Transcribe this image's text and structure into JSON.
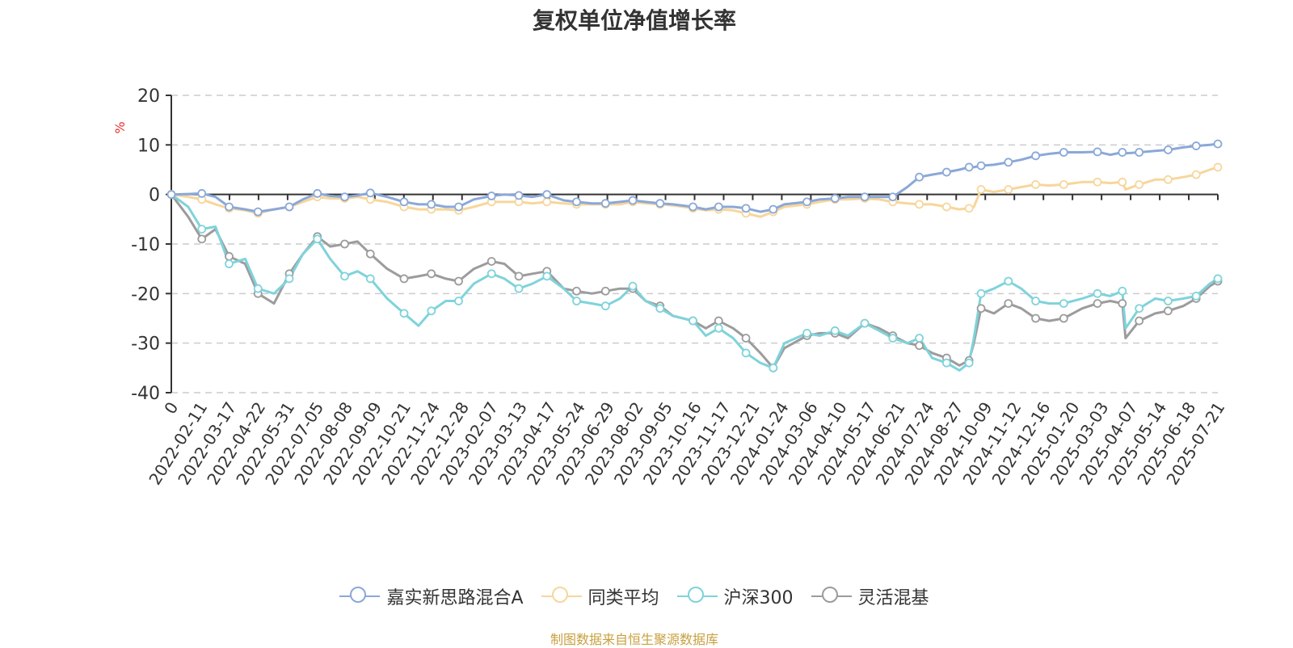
{
  "title": "复权单位净值增长率",
  "source_note": "制图数据来自恒生聚源数据库",
  "colors": {
    "jiashi": "#8aa8d8",
    "avg": "#f7d69b",
    "hs300": "#7fd3db",
    "lh": "#9c9c9c",
    "ylabel": "#e8302e",
    "source": "#c8a040",
    "axis": "#333333",
    "grid": "#cccccc"
  },
  "chart_data": {
    "type": "line",
    "title": "复权单位净值增长率",
    "ylabel": "%",
    "ylim": [
      -40,
      20
    ],
    "yticks": [
      20,
      10,
      0,
      -10,
      -20,
      -30,
      -40
    ],
    "grid": "horizontal dashed",
    "legend_position": "bottom-center",
    "x_ticks": [
      "0",
      "2022-02-11",
      "2022-03-17",
      "2022-04-22",
      "2022-05-31",
      "2022-07-05",
      "2022-08-08",
      "2022-09-09",
      "2022-10-21",
      "2022-11-24",
      "2022-12-28",
      "2023-02-07",
      "2023-03-13",
      "2023-04-17",
      "2023-05-24",
      "2023-06-29",
      "2023-08-02",
      "2023-09-05",
      "2023-10-16",
      "2023-11-17",
      "2023-12-21",
      "2024-01-24",
      "2024-03-06",
      "2024-04-10",
      "2024-05-17",
      "2024-06-21",
      "2024-07-24",
      "2024-08-27",
      "2024-10-09",
      "2024-11-12",
      "2024-12-16",
      "2025-01-20",
      "2025-03-03",
      "2025-04-07",
      "2025-05-14",
      "2025-06-18",
      "2025-07-21"
    ],
    "x": [
      "2022-01-04",
      "2022-01-25",
      "2022-02-11",
      "2022-02-28",
      "2022-03-17",
      "2022-04-06",
      "2022-04-22",
      "2022-05-12",
      "2022-05-31",
      "2022-06-17",
      "2022-07-05",
      "2022-07-21",
      "2022-08-08",
      "2022-08-24",
      "2022-09-09",
      "2022-09-30",
      "2022-10-21",
      "2022-11-08",
      "2022-11-24",
      "2022-12-12",
      "2022-12-28",
      "2023-01-16",
      "2023-02-07",
      "2023-02-23",
      "2023-03-13",
      "2023-03-30",
      "2023-04-17",
      "2023-05-08",
      "2023-05-24",
      "2023-06-12",
      "2023-06-29",
      "2023-07-17",
      "2023-08-02",
      "2023-08-18",
      "2023-09-05",
      "2023-09-21",
      "2023-10-16",
      "2023-11-01",
      "2023-11-17",
      "2023-12-05",
      "2023-12-21",
      "2024-01-08",
      "2024-01-24",
      "2024-02-07",
      "2024-03-06",
      "2024-03-22",
      "2024-04-10",
      "2024-04-26",
      "2024-05-17",
      "2024-06-04",
      "2024-06-21",
      "2024-07-09",
      "2024-07-24",
      "2024-08-09",
      "2024-08-27",
      "2024-09-12",
      "2024-09-24",
      "2024-09-30",
      "2024-10-09",
      "2024-10-25",
      "2024-11-12",
      "2024-11-28",
      "2024-12-16",
      "2025-01-02",
      "2025-01-20",
      "2025-02-12",
      "2025-03-03",
      "2025-03-19",
      "2025-04-03",
      "2025-04-07",
      "2025-04-24",
      "2025-05-14",
      "2025-05-30",
      "2025-06-18",
      "2025-07-04",
      "2025-07-21",
      "2025-07-31"
    ],
    "series": [
      {
        "name": "嘉实新思路混合A",
        "color_key": "jiashi",
        "values": [
          0,
          0.1,
          0.2,
          -0.5,
          -2.5,
          -3.0,
          -3.5,
          -3.0,
          -2.5,
          -1.0,
          0.2,
          -0.3,
          -0.5,
          -0.2,
          0.3,
          -0.5,
          -1.5,
          -2.0,
          -2.0,
          -2.5,
          -2.5,
          -1.0,
          -0.3,
          0.0,
          -0.2,
          -0.5,
          0.0,
          -1.2,
          -1.5,
          -1.8,
          -1.8,
          -1.5,
          -1.2,
          -1.5,
          -1.8,
          -2.0,
          -2.5,
          -3.0,
          -2.5,
          -2.5,
          -2.8,
          -3.5,
          -3.0,
          -2.0,
          -1.5,
          -1.0,
          -0.8,
          -0.5,
          -0.5,
          -0.5,
          -0.5,
          1.5,
          3.5,
          4.0,
          4.5,
          5.0,
          5.5,
          5.5,
          5.8,
          6.0,
          6.5,
          7.0,
          7.8,
          8.2,
          8.5,
          8.5,
          8.6,
          8.0,
          8.5,
          8.3,
          8.5,
          8.8,
          9.0,
          9.5,
          9.8,
          10.0,
          10.2
        ]
      },
      {
        "name": "同类平均",
        "color_key": "avg",
        "values": [
          0,
          -0.5,
          -1.0,
          -2.0,
          -2.8,
          -3.2,
          -3.8,
          -3.0,
          -2.5,
          -1.5,
          -0.5,
          -0.8,
          -0.8,
          -0.5,
          -1.0,
          -1.5,
          -2.5,
          -3.0,
          -3.0,
          -3.0,
          -3.2,
          -2.5,
          -1.5,
          -1.5,
          -1.5,
          -1.8,
          -1.5,
          -1.8,
          -2.0,
          -2.0,
          -2.0,
          -2.0,
          -1.5,
          -1.8,
          -2.0,
          -2.2,
          -2.8,
          -3.2,
          -3.0,
          -3.2,
          -3.8,
          -4.5,
          -3.5,
          -2.5,
          -2.0,
          -1.5,
          -1.0,
          -1.0,
          -0.8,
          -1.0,
          -1.5,
          -1.8,
          -2.0,
          -2.0,
          -2.5,
          -3.0,
          -2.8,
          -2.5,
          1.0,
          0.5,
          1.0,
          1.5,
          2.0,
          1.8,
          2.0,
          2.5,
          2.5,
          2.3,
          2.5,
          1.0,
          2.0,
          3.0,
          3.0,
          3.5,
          4.0,
          5.0,
          5.5
        ]
      },
      {
        "name": "沪深300",
        "color_key": "hs300",
        "values": [
          0,
          -2.5,
          -7.0,
          -6.5,
          -14.0,
          -13.0,
          -19.0,
          -20.0,
          -17.0,
          -12.0,
          -9.0,
          -13.0,
          -16.5,
          -15.5,
          -17.0,
          -21.0,
          -24.0,
          -26.5,
          -23.5,
          -21.5,
          -21.5,
          -18.0,
          -16.0,
          -17.0,
          -19.0,
          -18.0,
          -16.5,
          -19.0,
          -21.5,
          -22.0,
          -22.5,
          -21.0,
          -18.5,
          -21.5,
          -23.0,
          -24.5,
          -25.5,
          -28.5,
          -27.0,
          -29.0,
          -32.0,
          -34.0,
          -35.0,
          -30.0,
          -28.0,
          -28.5,
          -27.5,
          -28.5,
          -26.0,
          -27.5,
          -29.0,
          -30.0,
          -29.0,
          -33.0,
          -34.0,
          -35.5,
          -34.0,
          -29.0,
          -20.0,
          -19.0,
          -17.5,
          -19.0,
          -21.5,
          -22.0,
          -22.0,
          -21.0,
          -20.0,
          -20.5,
          -19.5,
          -27.0,
          -23.0,
          -21.0,
          -21.5,
          -21.0,
          -20.5,
          -18.0,
          -17.0
        ]
      },
      {
        "name": "灵活混基",
        "color_key": "lh",
        "values": [
          0,
          -4.5,
          -9.0,
          -7.0,
          -12.5,
          -14.0,
          -20.0,
          -22.0,
          -16.0,
          -12.0,
          -8.5,
          -10.5,
          -10.0,
          -9.5,
          -12.0,
          -15.0,
          -17.0,
          -16.5,
          -16.0,
          -17.0,
          -17.5,
          -15.0,
          -13.5,
          -14.0,
          -16.5,
          -16.0,
          -15.5,
          -19.0,
          -19.5,
          -20.0,
          -19.5,
          -19.0,
          -19.0,
          -21.5,
          -22.5,
          -24.5,
          -25.5,
          -27.0,
          -25.5,
          -27.0,
          -29.0,
          -32.0,
          -35.0,
          -31.0,
          -28.5,
          -28.0,
          -28.0,
          -29.0,
          -26.0,
          -27.0,
          -28.5,
          -30.0,
          -30.5,
          -32.0,
          -33.0,
          -34.5,
          -33.5,
          -30.0,
          -23.0,
          -24.0,
          -22.0,
          -23.0,
          -25.0,
          -25.5,
          -25.0,
          -23.0,
          -22.0,
          -21.5,
          -22.0,
          -29.0,
          -25.5,
          -24.0,
          -23.5,
          -22.5,
          -21.0,
          -18.5,
          -17.5
        ]
      }
    ]
  }
}
